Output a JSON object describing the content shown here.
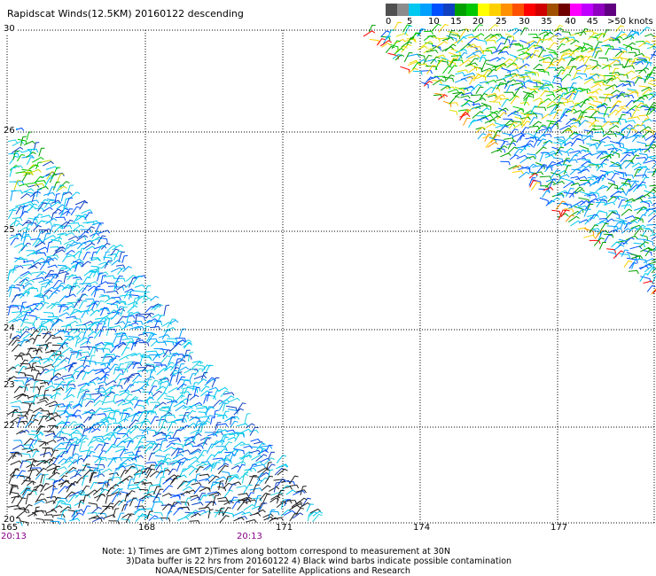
{
  "title": "Rapidscat Winds(12.5KM) 20160122 descending",
  "legend": {
    "colors": [
      "#505050",
      "#8c8c8c",
      "#00c8f0",
      "#00a0ff",
      "#0050ff",
      "#1040c0",
      "#00a000",
      "#00c800",
      "#ffff00",
      "#ffd000",
      "#ff9000",
      "#ff5000",
      "#ff0000",
      "#d00000",
      "#a05000",
      "#700000",
      "#ff00ff",
      "#c000ff",
      "#9000c0",
      "#600080"
    ],
    "labels": [
      "0",
      "5",
      "10",
      "15",
      "20",
      "25",
      "30",
      "35",
      "40",
      "45",
      ">50 knots"
    ]
  },
  "axes": {
    "lat_ticks": [
      "30",
      "26",
      "25",
      "24",
      "23",
      "22",
      "20"
    ],
    "lon_ticks": [
      "165",
      "168",
      "171",
      "174",
      "177"
    ],
    "time_labels": [
      "20:13",
      "20:13"
    ]
  },
  "notes": [
    "Note: 1) Times are GMT 2)Times along bottom correspond to measurement at 30N",
    "3)Data buffer is 22 hrs from 20160122 4) Black wind barbs indicate possible contamination",
    "NOAA/NESDIS/Center for Satellite Applications and Research"
  ],
  "colors": {
    "grid": "#000000",
    "time": "#880088"
  }
}
